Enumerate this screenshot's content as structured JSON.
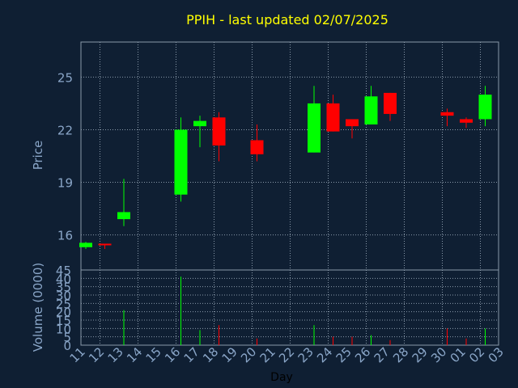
{
  "chart_data": {
    "type": "candlestick",
    "title": "PPIH - last updated 02/07/2025",
    "xlabel": "Day",
    "price_panel": {
      "ylabel": "Price",
      "ylim": [
        14,
        27
      ],
      "yticks": [
        16,
        19,
        22,
        25
      ],
      "grid": true
    },
    "volume_panel": {
      "ylabel": "Volume (0000)",
      "ylim": [
        0,
        45
      ],
      "yticks": [
        0,
        5,
        10,
        15,
        20,
        25,
        30,
        35,
        40,
        45
      ],
      "grid": true
    },
    "x_tick_labels": [
      "11",
      "12",
      "13",
      "14",
      "15",
      "16",
      "17",
      "18",
      "19",
      "20",
      "21",
      "22",
      "23",
      "24",
      "25",
      "26",
      "27",
      "28",
      "29",
      "30",
      "01",
      "02",
      "03"
    ],
    "candles": [
      {
        "slot": 0,
        "open": 15.3,
        "high": 15.6,
        "low": 15.2,
        "close": 15.55,
        "volume": 0
      },
      {
        "slot": 1,
        "open": 15.5,
        "high": 15.5,
        "low": 15.2,
        "close": 15.45,
        "volume": 0
      },
      {
        "slot": 2,
        "open": 16.9,
        "high": 19.2,
        "low": 16.5,
        "close": 17.3,
        "volume": 21
      },
      {
        "slot": 5,
        "open": 18.3,
        "high": 22.7,
        "low": 17.9,
        "close": 22.0,
        "volume": 41
      },
      {
        "slot": 6,
        "open": 22.2,
        "high": 22.8,
        "low": 21.0,
        "close": 22.5,
        "volume": 9
      },
      {
        "slot": 7,
        "open": 22.7,
        "high": 23.0,
        "low": 20.2,
        "close": 21.1,
        "volume": 12
      },
      {
        "slot": 9,
        "open": 21.4,
        "high": 22.3,
        "low": 20.2,
        "close": 20.6,
        "volume": 4
      },
      {
        "slot": 12,
        "open": 20.7,
        "high": 24.5,
        "low": 20.7,
        "close": 23.5,
        "volume": 12
      },
      {
        "slot": 13,
        "open": 23.5,
        "high": 24.0,
        "low": 21.9,
        "close": 21.9,
        "volume": 5
      },
      {
        "slot": 14,
        "open": 22.6,
        "high": 22.6,
        "low": 21.5,
        "close": 22.2,
        "volume": 5
      },
      {
        "slot": 15,
        "open": 22.3,
        "high": 24.5,
        "low": 22.3,
        "close": 23.9,
        "volume": 6
      },
      {
        "slot": 16,
        "open": 24.1,
        "high": 24.1,
        "low": 22.5,
        "close": 22.9,
        "volume": 3
      },
      {
        "slot": 19,
        "open": 23.0,
        "high": 23.2,
        "low": 22.2,
        "close": 22.8,
        "volume": 10
      },
      {
        "slot": 20,
        "open": 22.6,
        "high": 22.7,
        "low": 22.1,
        "close": 22.4,
        "volume": 4
      },
      {
        "slot": 21,
        "open": 22.6,
        "high": 24.5,
        "low": 22.2,
        "close": 24.0,
        "volume": 10
      }
    ]
  },
  "colors": {
    "background": "#0f1f33",
    "plot_bg": "#0f1f33",
    "up": "#00ff00",
    "down": "#ff0000",
    "grid": "#8a9aaa",
    "axis_text": "#8aa6c8",
    "title": "#ffff00"
  }
}
